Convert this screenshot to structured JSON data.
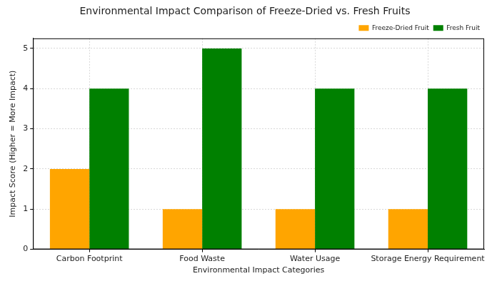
{
  "chart_data": {
    "type": "bar",
    "title": "Environmental Impact Comparison of Freeze-Dried vs. Fresh Fruits",
    "x_label": "Environmental Impact Categories",
    "y_label": "Impact Score (Higher = More Impact)",
    "categories": [
      "Carbon Footprint",
      "Food Waste",
      "Water Usage",
      "Storage Energy Requirement"
    ],
    "series": [
      {
        "name": "Freeze-Dried Fruit",
        "color": "#ffa500",
        "values": [
          2,
          1,
          1,
          1
        ]
      },
      {
        "name": "Fresh Fruit",
        "color": "#008000",
        "values": [
          4,
          5,
          4,
          4
        ]
      }
    ],
    "ylim": [
      0,
      5.25
    ],
    "yticks": [
      0,
      1,
      2,
      3,
      4,
      5
    ],
    "grid": true,
    "legend": "upper right"
  }
}
